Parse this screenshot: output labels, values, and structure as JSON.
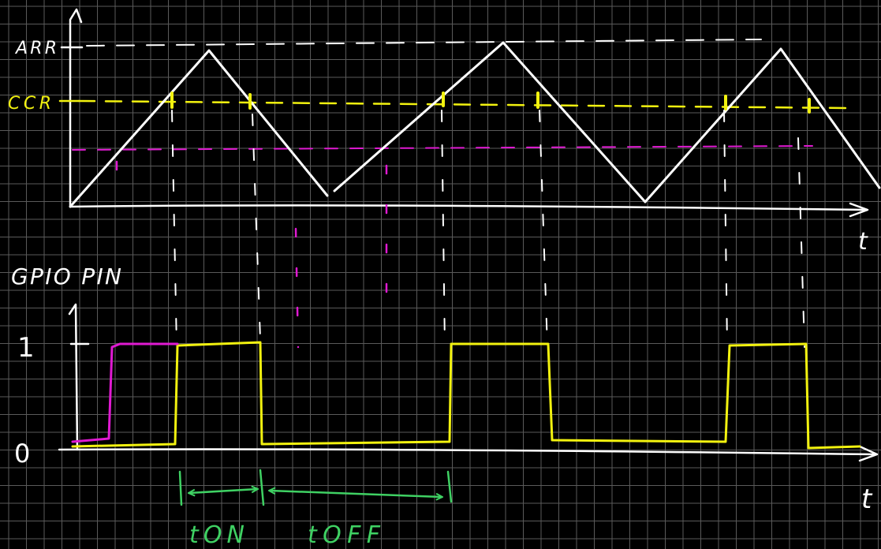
{
  "labels": {
    "arr": "ARR",
    "ccr": "CCR",
    "t_axis_top": "t",
    "gpio_pin": "GPIO PIN",
    "level_one": "1",
    "level_zero": "0",
    "t_axis_bottom": "t",
    "t_on": "tON",
    "t_off": "tOFF"
  },
  "colors": {
    "background": "#000000",
    "grid": "#5a5a5a",
    "axis": "#ffffff",
    "counter": "#ffffff",
    "ccr_signal": "#f2f20f",
    "low_threshold_signal": "#e01ad2",
    "timing_annotation": "#3fd163"
  },
  "icons": {
    "t_on_arrow": "double-arrow",
    "t_off_arrow": "double-arrow"
  }
}
